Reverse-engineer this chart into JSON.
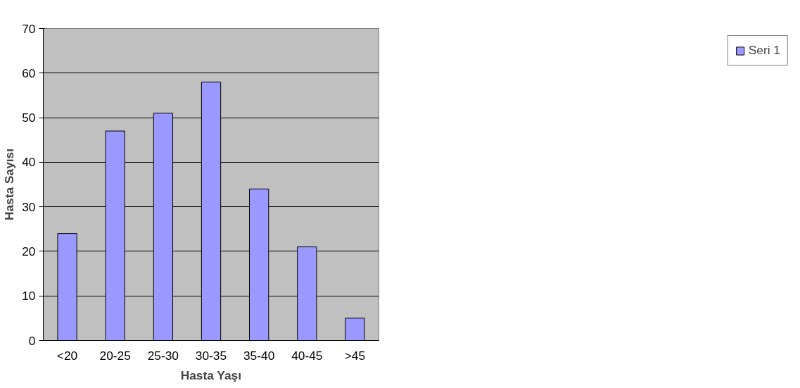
{
  "chart_data": {
    "type": "bar",
    "xlabel": "Hasta Yaşı",
    "ylabel": "Hasta Sayısı",
    "categories": [
      "<20",
      "20-25",
      "25-30",
      "30-35",
      "35-40",
      "40-45",
      ">45"
    ],
    "series": [
      {
        "name": "Seri 1",
        "color": "#9999ff",
        "values": [
          24,
          47,
          51,
          58,
          34,
          21,
          5
        ]
      }
    ],
    "ylim": [
      0,
      70
    ],
    "yticks": [
      0,
      10,
      20,
      30,
      40,
      50,
      60,
      70
    ],
    "grid": "y",
    "legend": "right"
  }
}
